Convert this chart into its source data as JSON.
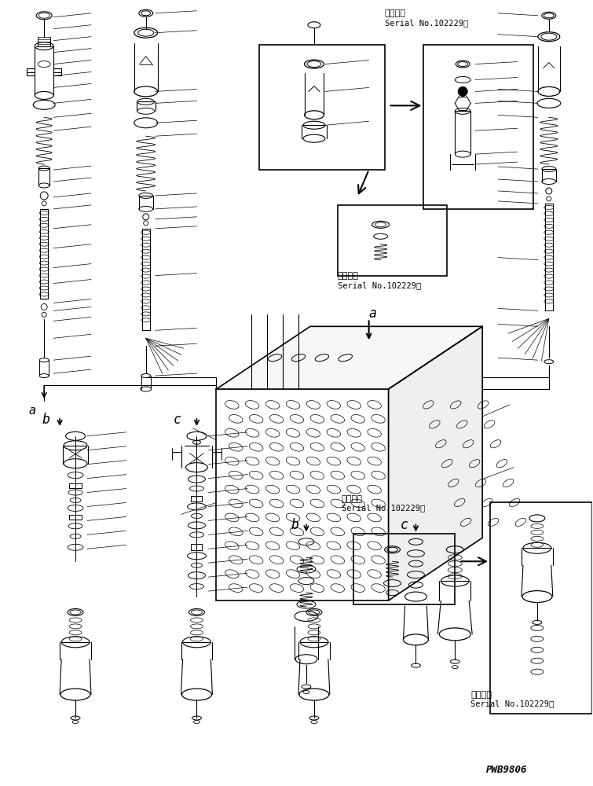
{
  "background_color": "#ffffff",
  "line_color": "#000000",
  "text_color": "#000000",
  "fig_width": 7.55,
  "fig_height": 10.0,
  "dpi": 100,
  "watermark": "PWB9806",
  "serial_label1": "適用号機",
  "serial_no1": "Serial No.102229～",
  "serial_label2": "適用号機",
  "serial_no2": "Serial No.102229～",
  "serial_label3": "適用号機",
  "serial_no3": "Serial No.102229～",
  "serial_label4": "適用号機",
  "serial_no4": "Serial No.102229～"
}
